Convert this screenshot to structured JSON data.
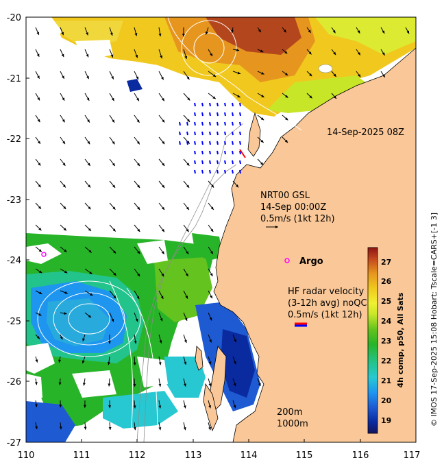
{
  "map": {
    "lon_ticks": [
      "110",
      "111",
      "112",
      "113",
      "114",
      "115",
      "116",
      "117"
    ],
    "lat_ticks": [
      "-20",
      "-21",
      "-22",
      "-23",
      "-24",
      "-25",
      "-26",
      "-27"
    ],
    "timestamp": "14-Sep-2025 08Z",
    "gsl_block": {
      "line1": "NRT00 GSL",
      "line2": "14-Sep 00:00Z",
      "line3": "0.5m/s (1kt 12h)"
    },
    "argo_label": "Argo",
    "hf_block": {
      "line1": "HF radar velocity",
      "line2": "(3-12h avg) noQC",
      "line3": "0.5m/s (1kt 12h)"
    },
    "isobaths": {
      "line1": "200m",
      "line2": "1000m"
    },
    "credit": "© IMOS 17-Sep-2025 15:08 Hobart; Tscale=CARS+[-1 3]",
    "colorbar": {
      "title": "4h comp, p50, All Sats",
      "ticks": [
        "19",
        "20",
        "21",
        "22",
        "23",
        "24",
        "25",
        "26",
        "27"
      ]
    },
    "colors": {
      "land": "#fac898",
      "hf_arrows": "#0000ff",
      "argo_marker": "#ff00ff"
    }
  }
}
